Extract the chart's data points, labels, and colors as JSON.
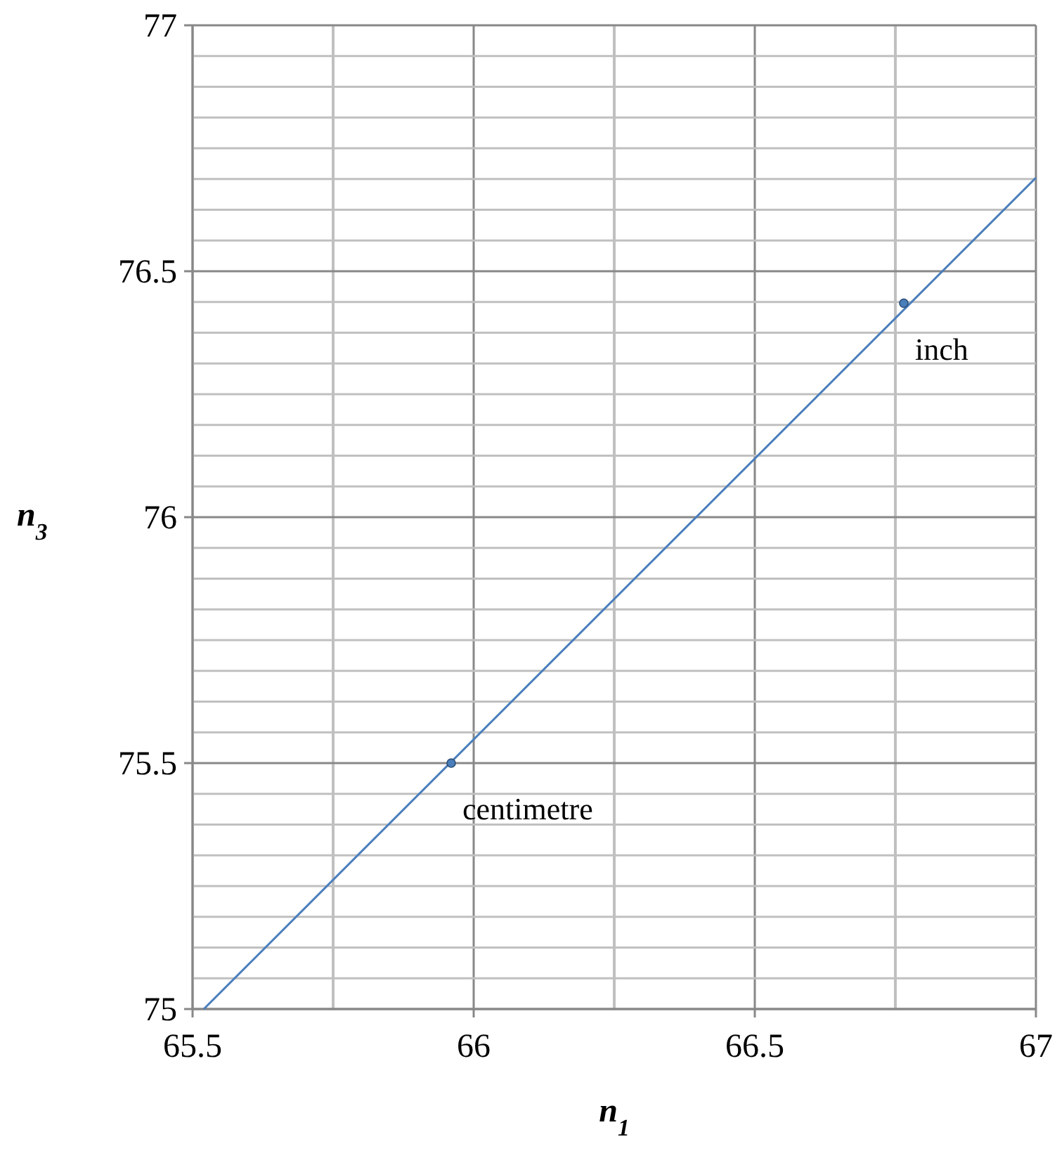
{
  "chart_data": {
    "type": "line",
    "xlabel": "n$_{1}$",
    "ylabel": "n$_{3}$",
    "xlim": [
      65.5,
      67
    ],
    "ylim": [
      75,
      77
    ],
    "xticks": [
      65.5,
      {
        "value": 65.75,
        "label": null
      },
      66,
      {
        "value": 66.25,
        "label": null
      },
      66.5,
      {
        "value": 66.75,
        "label": null
      },
      67
    ],
    "yticks": [
      75,
      {
        "value": 75.0625,
        "label": null
      },
      {
        "value": 75.125,
        "label": null
      },
      {
        "value": 75.1875,
        "label": null
      },
      {
        "value": 75.25,
        "label": null
      },
      {
        "value": 75.3125,
        "label": null
      },
      {
        "value": 75.375,
        "label": null
      },
      {
        "value": 75.4375,
        "label": null
      },
      75.5,
      {
        "value": 75.5625,
        "label": null
      },
      {
        "value": 75.625,
        "label": null
      },
      {
        "value": 75.6875,
        "label": null
      },
      {
        "value": 75.75,
        "label": null
      },
      {
        "value": 75.8125,
        "label": null
      },
      {
        "value": 75.875,
        "label": null
      },
      {
        "value": 75.9375,
        "label": null
      },
      76,
      {
        "value": 76.0625,
        "label": null
      },
      {
        "value": 76.125,
        "label": null
      },
      {
        "value": 76.1875,
        "label": null
      },
      {
        "value": 76.25,
        "label": null
      },
      {
        "value": 76.3125,
        "label": null
      },
      {
        "value": 76.375,
        "label": null
      },
      {
        "value": 76.4375,
        "label": null
      },
      76.5,
      {
        "value": 76.5625,
        "label": null
      },
      {
        "value": 76.625,
        "label": null
      },
      {
        "value": 76.6875,
        "label": null
      },
      {
        "value": 76.75,
        "label": null
      },
      {
        "value": 76.8125,
        "label": null
      },
      {
        "value": 76.875,
        "label": null
      },
      {
        "value": 76.9375,
        "label": null
      },
      77
    ],
    "grid": true,
    "series": [
      {
        "color": "#4a7ebb",
        "x": [
          65.52,
          67
        ],
        "values": [
          75,
          76.69
        ],
        "marker": "none"
      },
      {
        "type": "scatter",
        "color": "#4a7ebb",
        "x": [
          65.96,
          66.765
        ],
        "values": [
          75.5,
          76.435
        ],
        "marker": "circle"
      }
    ],
    "annotations": [
      {
        "text": "centimetre",
        "x": 65.96,
        "y": 75.5
      },
      {
        "text": "inch",
        "x": 66.765,
        "y": 76.435
      }
    ]
  }
}
